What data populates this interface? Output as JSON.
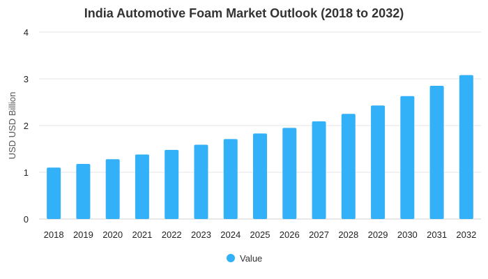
{
  "chart_data": {
    "type": "bar",
    "title": "India Automotive Foam Market Outlook (2018 to 2032)",
    "xlabel": "",
    "ylabel": "USD USD Billion",
    "categories": [
      "2018",
      "2019",
      "2020",
      "2021",
      "2022",
      "2023",
      "2024",
      "2025",
      "2026",
      "2027",
      "2028",
      "2029",
      "2030",
      "2031",
      "2032"
    ],
    "series": [
      {
        "name": "Value",
        "values": [
          1.1,
          1.18,
          1.28,
          1.38,
          1.48,
          1.59,
          1.71,
          1.83,
          1.95,
          2.09,
          2.25,
          2.43,
          2.63,
          2.85,
          3.08
        ]
      }
    ],
    "ylim": [
      0,
      4
    ],
    "yticks": [
      "0",
      "1",
      "2",
      "3",
      "4"
    ],
    "grid": true,
    "legend_position": "bottom",
    "bar_color": "#33b1f8",
    "grid_color": "#e6e6e6"
  }
}
